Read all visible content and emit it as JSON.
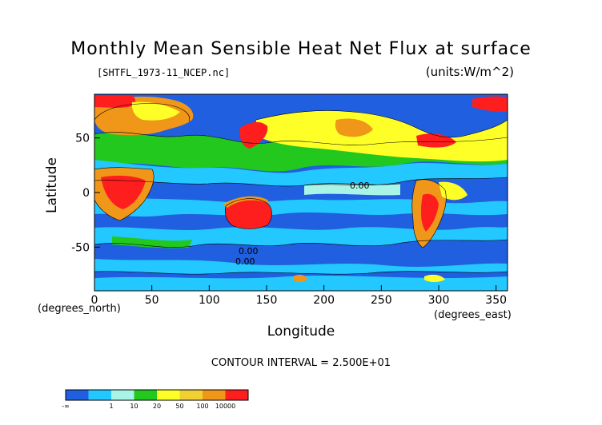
{
  "chart_data": {
    "type": "heatmap",
    "title": "Monthly Mean Sensible Heat Net Flux at surface",
    "subtitle": "[SHTFL_1973-11_NCEP.nc]",
    "units": "(units:W/m^2)",
    "xlabel": "Longitude",
    "ylabel": "Latitude",
    "x_unit_label": "(degrees_east)",
    "y_unit_label": "(degrees_north)",
    "xlim": [
      0,
      360
    ],
    "ylim": [
      -90,
      90
    ],
    "x_ticks": [
      0,
      50,
      100,
      150,
      200,
      250,
      300,
      350
    ],
    "y_ticks": [
      -50,
      0,
      50
    ],
    "contour_interval_text": "CONTOUR INTERVAL = 2.500E+01",
    "contour_labels": [
      "0.00",
      "0.00",
      "0.00"
    ],
    "colorbar": {
      "tick_labels": [
        "-∞",
        "1",
        "10",
        "20",
        "50",
        "100",
        "10000"
      ],
      "colors": [
        "#1f5fe0",
        "#22c8ff",
        "#a8f5e8",
        "#22c81e",
        "#ffff28",
        "#f0d032",
        "#f09618",
        "#ff1e1e"
      ]
    }
  }
}
